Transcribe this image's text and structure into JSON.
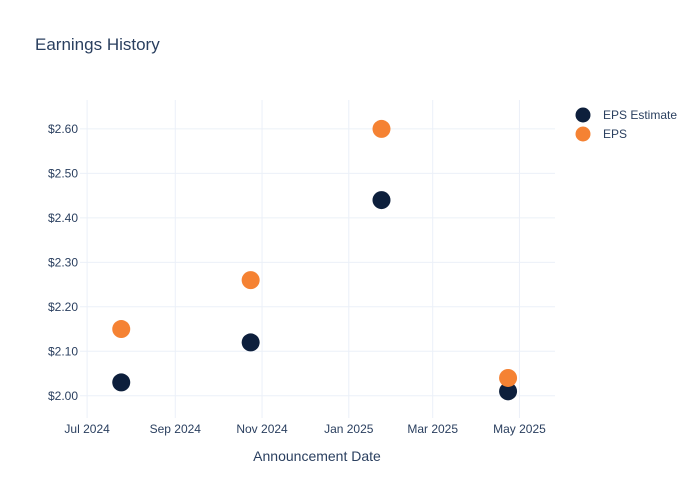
{
  "chart_data": {
    "type": "scatter",
    "title": "Earnings History",
    "xlabel": "Announcement Date",
    "ylabel": "",
    "x_ticks": [
      "Jul 2024",
      "Sep 2024",
      "Nov 2024",
      "Jan 2025",
      "Mar 2025",
      "May 2025"
    ],
    "y_ticks": [
      "$2.00",
      "$2.10",
      "$2.20",
      "$2.30",
      "$2.40",
      "$2.50",
      "$2.60"
    ],
    "ylim": [
      1.95,
      2.665
    ],
    "xlim": [
      "2024-06-26",
      "2025-05-26"
    ],
    "grid": true,
    "legend_position": "top-right",
    "series": [
      {
        "name": "EPS Estimate",
        "color": "#0d1f3c",
        "points": [
          {
            "x": "2024-07-25",
            "y": 2.03
          },
          {
            "x": "2024-10-24",
            "y": 2.12
          },
          {
            "x": "2025-01-24",
            "y": 2.44
          },
          {
            "x": "2025-04-23",
            "y": 2.01
          }
        ]
      },
      {
        "name": "EPS",
        "color": "#f58233",
        "points": [
          {
            "x": "2024-07-25",
            "y": 2.15
          },
          {
            "x": "2024-10-24",
            "y": 2.26
          },
          {
            "x": "2025-01-24",
            "y": 2.6
          },
          {
            "x": "2025-04-23",
            "y": 2.04
          }
        ]
      }
    ]
  }
}
